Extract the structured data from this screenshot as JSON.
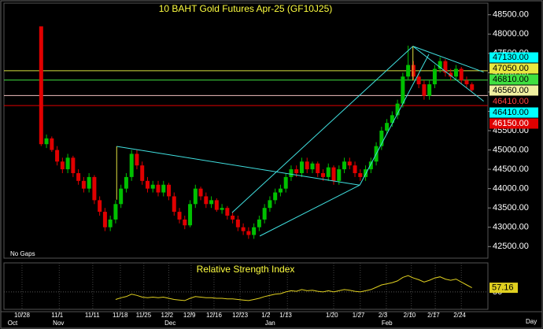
{
  "chart_data": {
    "type": "candlestick",
    "title": "10 BAHT  Gold  Futures  Apr-25  (GF10J25)",
    "note": "No Gaps",
    "x_unit": "Day",
    "up_color": "#00c000",
    "down_color": "#e00000",
    "xlim": [
      -7,
      84
    ],
    "xticks": [
      {
        "value": -3.6,
        "label": "10/28"
      },
      {
        "value": 3.4,
        "label": "11/1"
      },
      {
        "value": 9.7,
        "label": "11/11"
      },
      {
        "value": 14.9,
        "label": "11/18"
      },
      {
        "value": 19.3,
        "label": "11/25"
      },
      {
        "value": 24,
        "label": "12/2"
      },
      {
        "value": 28.2,
        "label": "12/9"
      },
      {
        "value": 32.5,
        "label": "12/16"
      },
      {
        "value": 37.4,
        "label": "12/23"
      },
      {
        "value": 42.9,
        "label": "1/2"
      },
      {
        "value": 46.3,
        "label": "1/13"
      },
      {
        "value": 55,
        "label": "1/20"
      },
      {
        "value": 60,
        "label": "1/27"
      },
      {
        "value": 64.9,
        "label": "2/3"
      },
      {
        "value": 69.6,
        "label": "2/10"
      },
      {
        "value": 74.1,
        "label": "2/17"
      },
      {
        "value": 79,
        "label": "2/24"
      }
    ],
    "months": [
      {
        "value": -6.3,
        "label": "Oct"
      },
      {
        "value": 2.2,
        "label": "Nov"
      },
      {
        "value": 23.2,
        "label": "Dec"
      },
      {
        "value": 42.1,
        "label": "Jan"
      },
      {
        "value": 64,
        "label": "Feb"
      }
    ],
    "ylim": [
      42200,
      48800
    ],
    "yticks": [
      {
        "value": 42500,
        "label": "42500.00"
      },
      {
        "value": 43000,
        "label": "43000.00"
      },
      {
        "value": 43500,
        "label": "43500.00"
      },
      {
        "value": 44000,
        "label": "44000.00"
      },
      {
        "value": 44500,
        "label": "44500.00"
      },
      {
        "value": 45000,
        "label": "45000.00"
      },
      {
        "value": 45500,
        "label": "45500.00"
      },
      {
        "value": 46000,
        "label": "46000.00"
      },
      {
        "value": 46500,
        "label": "46500.00"
      },
      {
        "value": 47000,
        "label": "47000.00"
      },
      {
        "value": 47500,
        "label": "47500.00"
      },
      {
        "value": 48000,
        "label": "48000.00"
      },
      {
        "value": 48500,
        "label": "48500.00"
      }
    ],
    "candles": [
      [
        48200,
        48200,
        45100,
        45150
      ],
      [
        45150,
        45400,
        45050,
        45300
      ],
      [
        45300,
        45350,
        44950,
        45000
      ],
      [
        45000,
        45100,
        44600,
        44700
      ],
      [
        44700,
        44800,
        44400,
        44500
      ],
      [
        44500,
        44900,
        44400,
        44800
      ],
      [
        44800,
        44850,
        44300,
        44400
      ],
      [
        44400,
        44500,
        44100,
        44200
      ],
      [
        44200,
        44300,
        43900,
        44000
      ],
      [
        44000,
        44400,
        43900,
        44300
      ],
      [
        44300,
        44350,
        43600,
        43700
      ],
      [
        43700,
        43800,
        43300,
        43400
      ],
      [
        43400,
        43500,
        42900,
        43000
      ],
      [
        43000,
        43300,
        42900,
        43200
      ],
      [
        43200,
        43700,
        43100,
        43600
      ],
      [
        43600,
        44100,
        43500,
        44000
      ],
      [
        44000,
        44400,
        43900,
        44300
      ],
      [
        44300,
        45000,
        44200,
        44900
      ],
      [
        44900,
        45000,
        44500,
        44600
      ],
      [
        44600,
        44700,
        44100,
        44200
      ],
      [
        44200,
        44300,
        43900,
        44000
      ],
      [
        44000,
        44200,
        43900,
        44100
      ],
      [
        44100,
        44200,
        43800,
        43900
      ],
      [
        43900,
        44200,
        43800,
        44100
      ],
      [
        44100,
        44150,
        43700,
        43800
      ],
      [
        43800,
        43900,
        43300,
        43400
      ],
      [
        43400,
        43500,
        43100,
        43200
      ],
      [
        43200,
        43300,
        42950,
        43050
      ],
      [
        43050,
        43700,
        43000,
        43600
      ],
      [
        43600,
        44100,
        43500,
        44000
      ],
      [
        44000,
        44050,
        43700,
        43800
      ],
      [
        43800,
        43900,
        43500,
        43600
      ],
      [
        43600,
        43800,
        43500,
        43700
      ],
      [
        43700,
        43750,
        43400,
        43450
      ],
      [
        43450,
        43600,
        43350,
        43500
      ],
      [
        43500,
        43550,
        43200,
        43300
      ],
      [
        43300,
        43400,
        43100,
        43200
      ],
      [
        43200,
        43300,
        42900,
        43000
      ],
      [
        43000,
        43100,
        42800,
        42900
      ],
      [
        42900,
        43000,
        42700,
        42800
      ],
      [
        42800,
        43100,
        42700,
        43000
      ],
      [
        43000,
        43300,
        42900,
        43200
      ],
      [
        43200,
        43600,
        43100,
        43500
      ],
      [
        43500,
        43800,
        43400,
        43700
      ],
      [
        43700,
        44000,
        43600,
        43900
      ],
      [
        43900,
        44100,
        43800,
        44000
      ],
      [
        44000,
        44400,
        43900,
        44300
      ],
      [
        44300,
        44600,
        44200,
        44500
      ],
      [
        44500,
        44600,
        44300,
        44400
      ],
      [
        44400,
        44800,
        44300,
        44700
      ],
      [
        44700,
        44800,
        44400,
        44500
      ],
      [
        44500,
        44700,
        44400,
        44650
      ],
      [
        44650,
        44700,
        44300,
        44400
      ],
      [
        44400,
        44500,
        44200,
        44300
      ],
      [
        44300,
        44650,
        44200,
        44550
      ],
      [
        44550,
        44600,
        44100,
        44200
      ],
      [
        44200,
        44600,
        44100,
        44500
      ],
      [
        44500,
        44800,
        44400,
        44700
      ],
      [
        44700,
        44800,
        44500,
        44600
      ],
      [
        44600,
        44700,
        44300,
        44400
      ],
      [
        44400,
        44500,
        44200,
        44300
      ],
      [
        44300,
        44600,
        44200,
        44500
      ],
      [
        44500,
        44800,
        44400,
        44700
      ],
      [
        44700,
        45200,
        44600,
        45100
      ],
      [
        45100,
        45600,
        45000,
        45500
      ],
      [
        45500,
        45800,
        45400,
        45700
      ],
      [
        45700,
        46000,
        45600,
        45900
      ],
      [
        45900,
        46300,
        45800,
        46200
      ],
      [
        46200,
        47000,
        46100,
        46900
      ],
      [
        46900,
        47700,
        46800,
        47200
      ],
      [
        47200,
        47300,
        46800,
        46900
      ],
      [
        46900,
        47000,
        46600,
        46700
      ],
      [
        46700,
        46800,
        46300,
        46400
      ],
      [
        46400,
        46800,
        46300,
        46700
      ],
      [
        46700,
        47200,
        46600,
        47100
      ],
      [
        47100,
        47400,
        47000,
        47300
      ],
      [
        47300,
        47350,
        46900,
        47000
      ],
      [
        47000,
        47100,
        46800,
        46900
      ],
      [
        46900,
        47200,
        46800,
        47100
      ],
      [
        47100,
        47150,
        46700,
        46800
      ],
      [
        46800,
        46900,
        46600,
        46700
      ],
      [
        46700,
        46750,
        46500,
        46550
      ]
    ],
    "trendlines": [
      {
        "color": "#40e0e0",
        "points": [
          [
            14.2,
            45093
          ],
          [
            59.9,
            44090
          ]
        ]
      },
      {
        "color": "#40e0e0",
        "points": [
          [
            35.9,
            43379
          ],
          [
            69.9,
            47685
          ]
        ]
      },
      {
        "color": "#40e0e0",
        "points": [
          [
            41.1,
            42773
          ],
          [
            59.9,
            44090
          ]
        ]
      },
      {
        "color": "#40e0e0",
        "points": [
          [
            59.9,
            44090
          ],
          [
            72.9,
            47476
          ]
        ]
      },
      {
        "color": "#40e0e0",
        "points": [
          [
            69.9,
            47685
          ],
          [
            83.2,
            47016
          ]
        ]
      },
      {
        "color": "#40e0e0",
        "points": [
          [
            69.9,
            47685
          ],
          [
            83.2,
            46263
          ]
        ]
      },
      {
        "color": "#e0e040",
        "points": [
          [
            14.2,
            45093
          ],
          [
            14.2,
            43713
          ]
        ]
      },
      {
        "color": "#e0e040",
        "points": [
          [
            69.9,
            47685
          ],
          [
            69.9,
            46800
          ]
        ]
      }
    ],
    "price_levels": [
      {
        "value": 47130,
        "label": "47130.00",
        "color": "#00ffff",
        "text_color": "#000",
        "line": null
      },
      {
        "value": 47050,
        "label": "47050.00",
        "color": "#e8e840",
        "text_color": "#000",
        "line": "#d8e040"
      },
      {
        "value": 46810,
        "label": "46810.00",
        "color": "#40e040",
        "text_color": "#000",
        "line": "#40e040"
      },
      {
        "value": 46560,
        "label": "46560.00",
        "color": "#f0f0a0",
        "text_color": "#000",
        "line": null
      },
      {
        "value": 46410,
        "label": "46410.00",
        "color": "#000",
        "text_color": "#ff4040",
        "line": "#f0c0c0"
      },
      {
        "value": 46410,
        "label": "46410.00",
        "color": "#00ffff",
        "text_color": "#000",
        "line": null
      },
      {
        "value": 46150,
        "label": "46150.00",
        "color": "#e00000",
        "text_color": "#fff",
        "line": "#e00000"
      }
    ],
    "rsi": {
      "title": "Relative Strength Index",
      "color": "#e0d020",
      "ylim": [
        20,
        100
      ],
      "yticks": [
        50
      ],
      "values": [
        null,
        null,
        null,
        null,
        null,
        null,
        null,
        null,
        null,
        null,
        null,
        null,
        null,
        null,
        37,
        40,
        42,
        46,
        44,
        41,
        40,
        41,
        40,
        41,
        39,
        37,
        36,
        35,
        39,
        42,
        41,
        40,
        40,
        39,
        39,
        38,
        38,
        37,
        36,
        35,
        37,
        39,
        42,
        44,
        46,
        47,
        50,
        52,
        51,
        54,
        52,
        53,
        51,
        50,
        52,
        50,
        52,
        54,
        53,
        51,
        50,
        52,
        54,
        58,
        62,
        64,
        66,
        69,
        75,
        78,
        74,
        71,
        67,
        70,
        74,
        76,
        72,
        70,
        72,
        67,
        62,
        57.16
      ]
    }
  }
}
